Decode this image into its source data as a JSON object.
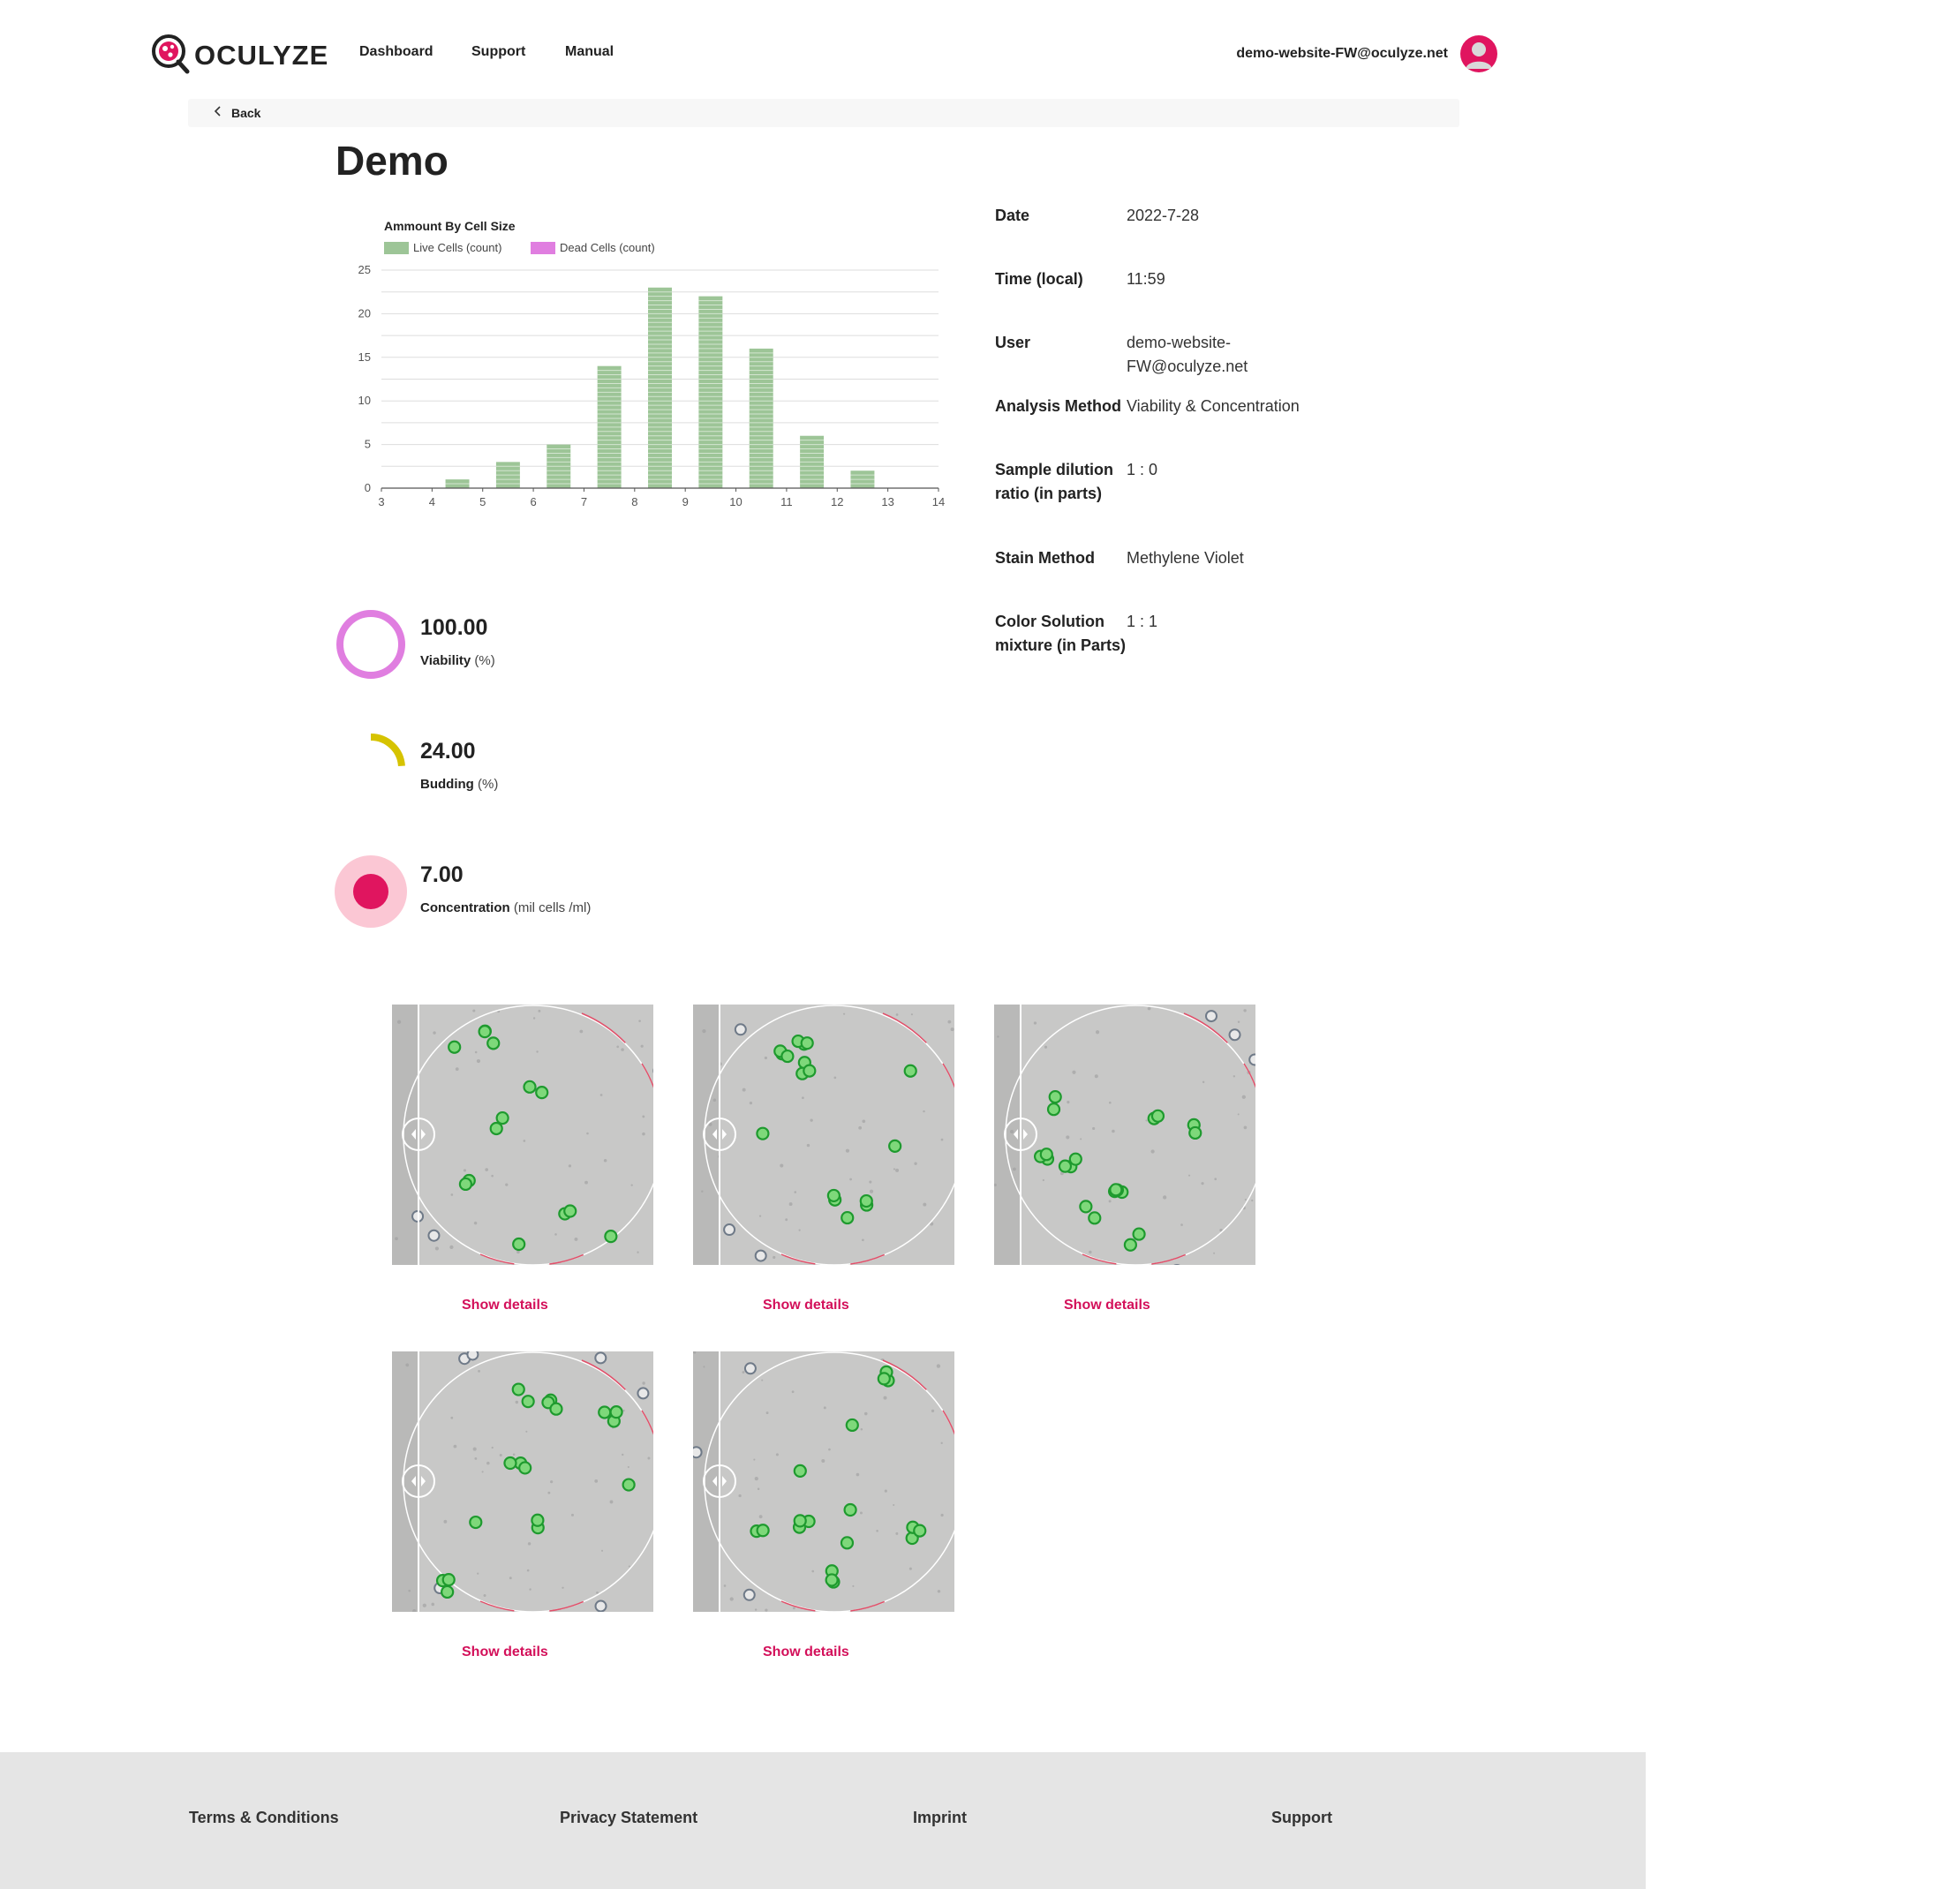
{
  "header": {
    "brand": "OCULYZE",
    "nav": [
      {
        "label": "Dashboard"
      },
      {
        "label": "Support"
      },
      {
        "label": "Manual"
      }
    ],
    "user_email": "demo-website-FW@oculyze.net"
  },
  "back_label": "Back",
  "page_title": "Demo",
  "chart_data": {
    "type": "bar",
    "title": "Ammount By Cell Size",
    "series": [
      {
        "name": "Live Cells (count)",
        "color": "#9dc597",
        "x": [
          4,
          5,
          6,
          7,
          8,
          9,
          10,
          11,
          12
        ],
        "values": [
          1,
          3,
          5,
          14,
          23,
          22,
          16,
          6,
          2
        ]
      },
      {
        "name": "Dead Cells (count)",
        "color": "#e07ee0",
        "x": [],
        "values": []
      }
    ],
    "xlim": [
      3,
      14
    ],
    "xticks": [
      "3",
      "4",
      "5",
      "6",
      "7",
      "8",
      "9",
      "10",
      "11",
      "12",
      "13",
      "14"
    ],
    "ylim": [
      0,
      25
    ],
    "yticks": [
      "0",
      "5",
      "10",
      "15",
      "20",
      "25"
    ],
    "grid": true,
    "legend": "top-left"
  },
  "details": [
    {
      "label": "Date",
      "value": "2022-7-28"
    },
    {
      "label": "Time (local)",
      "value": "11:59"
    },
    {
      "label": "User",
      "value": "demo-website-FW@oculyze.net"
    },
    {
      "label": "Analysis Method",
      "value": "Viability & Concentration"
    },
    {
      "label": "Sample dilution ratio (in parts)",
      "value": "1 : 0"
    },
    {
      "label": "Stain Method",
      "value": "Methylene Violet"
    },
    {
      "label": "Color Solution mixture (in Parts)",
      "value": "1 : 1"
    }
  ],
  "metrics": {
    "viability": {
      "value": "100.00",
      "label": "Viability",
      "unit": "(%)",
      "fraction": 1.0,
      "color": "#e07ee0"
    },
    "budding": {
      "value": "24.00",
      "label": "Budding",
      "unit": "(%)",
      "fraction": 0.24,
      "color": "#d6c300"
    },
    "concentration": {
      "value": "7.00",
      "label": "Concentration",
      "unit": "(mil cells /ml)",
      "color": "#e0155f",
      "halo": "#fbc7d4"
    }
  },
  "images": [
    {
      "details_label": "Show details"
    },
    {
      "details_label": "Show details"
    },
    {
      "details_label": "Show details"
    },
    {
      "details_label": "Show details"
    },
    {
      "details_label": "Show details"
    }
  ],
  "footer": [
    {
      "label": "Terms & Conditions"
    },
    {
      "label": "Privacy Statement"
    },
    {
      "label": "Imprint"
    },
    {
      "label": "Support"
    }
  ],
  "colors": {
    "accent": "#d3105a",
    "live": "#9dc597",
    "dead": "#e07ee0"
  }
}
